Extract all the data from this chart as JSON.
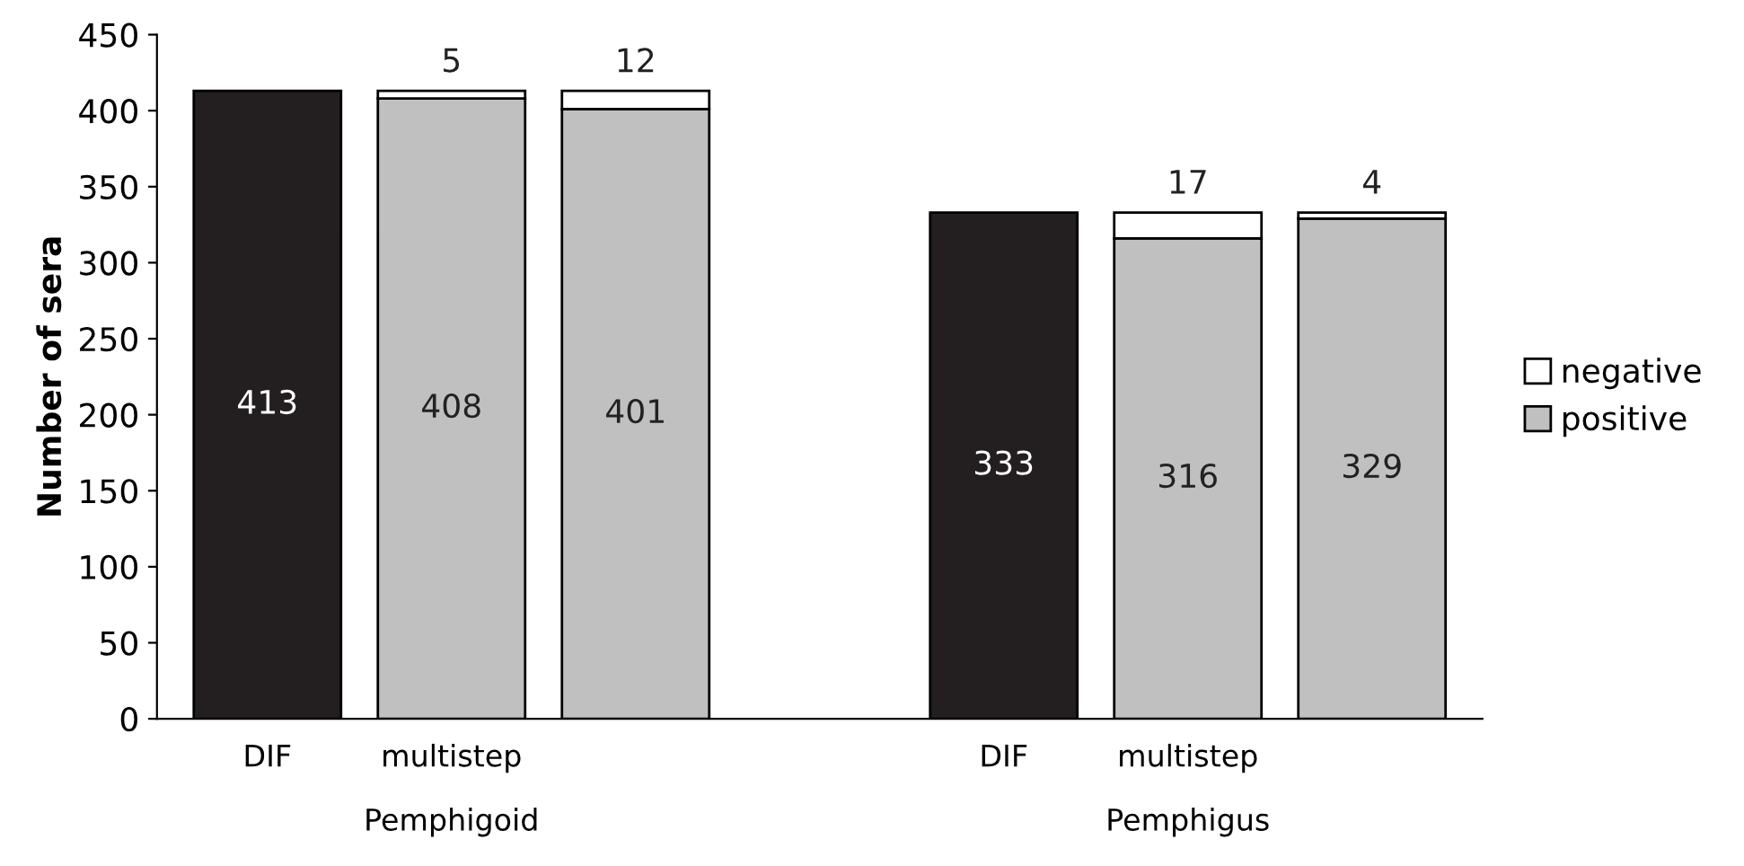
{
  "chart_data": {
    "type": "bar",
    "stacked": true,
    "ylabel": "Number of sera",
    "categories": [
      "DIF",
      "multistep",
      null,
      null,
      "DIF",
      "multistep",
      null
    ],
    "series": [
      {
        "name": "positive",
        "color": "#c0c0c0",
        "colors": [
          "#231f20",
          "#c0c0c0",
          "#c0c0c0",
          "#c0c0c0",
          "#231f20",
          "#c0c0c0",
          "#c0c0c0"
        ],
        "values": [
          413,
          408,
          401,
          null,
          333,
          316,
          329
        ]
      },
      {
        "name": "negative",
        "color": "#ffffff",
        "values": [
          null,
          5,
          12,
          null,
          null,
          17,
          4
        ]
      }
    ],
    "data_labels": true,
    "ylim": [
      0,
      450
    ],
    "yticks": [
      0,
      50,
      100,
      150,
      200,
      250,
      300,
      350,
      400,
      450
    ],
    "legend": "right",
    "grid": false,
    "annotations": [
      "Pemphigoid",
      "Pemphigus"
    ]
  }
}
